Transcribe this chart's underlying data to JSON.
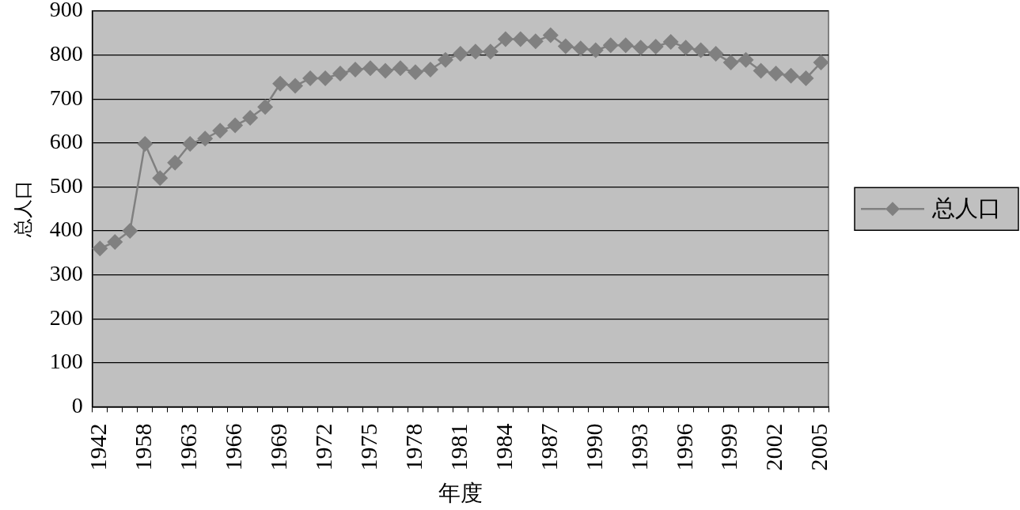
{
  "chart_data": {
    "type": "line",
    "xlabel": "年度",
    "ylabel": "总人口",
    "categories": [
      "1942",
      null,
      null,
      "1958",
      null,
      null,
      "1963",
      null,
      null,
      "1966",
      null,
      null,
      "1969",
      null,
      null,
      "1972",
      null,
      null,
      "1975",
      null,
      null,
      "1978",
      null,
      null,
      "1981",
      null,
      null,
      "1984",
      null,
      null,
      "1987",
      null,
      null,
      "1990",
      null,
      null,
      "1993",
      null,
      null,
      "1996",
      null,
      null,
      "1999",
      null,
      null,
      "2002",
      null,
      null,
      "2005"
    ],
    "series": [
      {
        "name": "总人口",
        "color": "#808080",
        "values": [
          360,
          375,
          400,
          598,
          520,
          555,
          598,
          610,
          628,
          640,
          657,
          682,
          735,
          730,
          747,
          747,
          758,
          767,
          770,
          764,
          770,
          761,
          767,
          789,
          803,
          808,
          808,
          836,
          836,
          831,
          845,
          820,
          815,
          811,
          822,
          822,
          817,
          819,
          830,
          817,
          811,
          803,
          783,
          789,
          764,
          758,
          753,
          747,
          783
        ]
      }
    ],
    "ylim": [
      0,
      900
    ],
    "yticks": [
      0,
      100,
      200,
      300,
      400,
      500,
      600,
      700,
      800,
      900
    ],
    "grid": "y",
    "legend": "right",
    "marker": "diamond"
  }
}
